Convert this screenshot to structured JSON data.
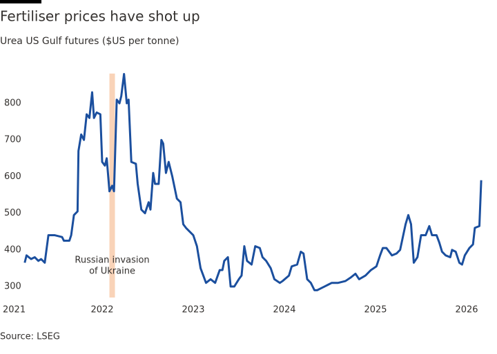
{
  "chart_data": {
    "type": "line",
    "title": "Fertiliser prices have shot up",
    "subtitle": "Urea US Gulf futures ($US per tonne)",
    "source": "Source: LSEG",
    "annotation": {
      "lines": [
        "Russian invasion",
        "of Ukraine"
      ],
      "x": 2022.11,
      "color": "#f9d3b8"
    },
    "xlim": [
      2021,
      2026.3
    ],
    "xticks": [
      2021,
      2022,
      2023,
      2024,
      2025,
      2026
    ],
    "ylim": [
      270,
      900
    ],
    "yticks": [
      300,
      400,
      500,
      600,
      700,
      800
    ],
    "grid": false,
    "series": [
      {
        "name": "Urea US Gulf futures",
        "color": "#1b4f9e",
        "x": [
          2021.15,
          2021.17,
          2021.22,
          2021.26,
          2021.3,
          2021.33,
          2021.37,
          2021.41,
          2021.48,
          2021.56,
          2021.58,
          2021.64,
          2021.66,
          2021.69,
          2021.73,
          2021.74,
          2021.77,
          2021.8,
          2021.83,
          2021.86,
          2021.89,
          2021.91,
          2021.94,
          2021.98,
          2022.0,
          2022.03,
          2022.05,
          2022.08,
          2022.11,
          2022.13,
          2022.16,
          2022.19,
          2022.21,
          2022.24,
          2022.27,
          2022.29,
          2022.32,
          2022.37,
          2022.39,
          2022.43,
          2022.47,
          2022.51,
          2022.53,
          2022.56,
          2022.58,
          2022.62,
          2022.65,
          2022.67,
          2022.7,
          2022.73,
          2022.77,
          2022.82,
          2022.86,
          2022.89,
          2022.92,
          2023.0,
          2023.04,
          2023.08,
          2023.11,
          2023.14,
          2023.19,
          2023.24,
          2023.29,
          2023.32,
          2023.34,
          2023.38,
          2023.41,
          2023.45,
          2023.5,
          2023.53,
          2023.56,
          2023.59,
          2023.64,
          2023.68,
          2023.73,
          2023.76,
          2023.8,
          2023.85,
          2023.89,
          2023.95,
          2023.98,
          2024.05,
          2024.08,
          2024.14,
          2024.18,
          2024.21,
          2024.25,
          2024.29,
          2024.33,
          2024.36,
          2024.4,
          2024.44,
          2024.48,
          2024.52,
          2024.59,
          2024.67,
          2024.73,
          2024.78,
          2024.82,
          2024.89,
          2024.95,
          2025.01,
          2025.05,
          2025.08,
          2025.12,
          2025.18,
          2025.23,
          2025.27,
          2025.33,
          2025.36,
          2025.39,
          2025.42,
          2025.46,
          2025.5,
          2025.55,
          2025.59,
          2025.62,
          2025.67,
          2025.7,
          2025.73,
          2025.77,
          2025.82,
          2025.84,
          2025.88,
          2025.92,
          2025.95,
          2025.98,
          2026.03,
          2026.07,
          2026.09,
          2026.14,
          2026.16
        ],
        "values": [
          365,
          385,
          375,
          380,
          370,
          375,
          365,
          440,
          440,
          435,
          425,
          425,
          440,
          495,
          505,
          670,
          715,
          700,
          770,
          760,
          830,
          760,
          775,
          770,
          640,
          630,
          650,
          560,
          575,
          560,
          810,
          800,
          820,
          880,
          800,
          810,
          640,
          635,
          580,
          510,
          500,
          530,
          510,
          610,
          580,
          580,
          700,
          690,
          610,
          640,
          600,
          540,
          530,
          470,
          460,
          440,
          410,
          350,
          330,
          310,
          320,
          310,
          345,
          345,
          370,
          380,
          300,
          300,
          320,
          330,
          410,
          370,
          360,
          410,
          405,
          380,
          370,
          350,
          320,
          310,
          315,
          330,
          355,
          360,
          395,
          390,
          320,
          310,
          290,
          290,
          295,
          300,
          305,
          310,
          310,
          315,
          325,
          335,
          320,
          330,
          345,
          355,
          385,
          405,
          405,
          385,
          390,
          400,
          470,
          495,
          470,
          365,
          380,
          440,
          440,
          465,
          440,
          440,
          420,
          395,
          385,
          380,
          400,
          395,
          365,
          360,
          385,
          405,
          415,
          460,
          465,
          590
        ]
      }
    ]
  }
}
